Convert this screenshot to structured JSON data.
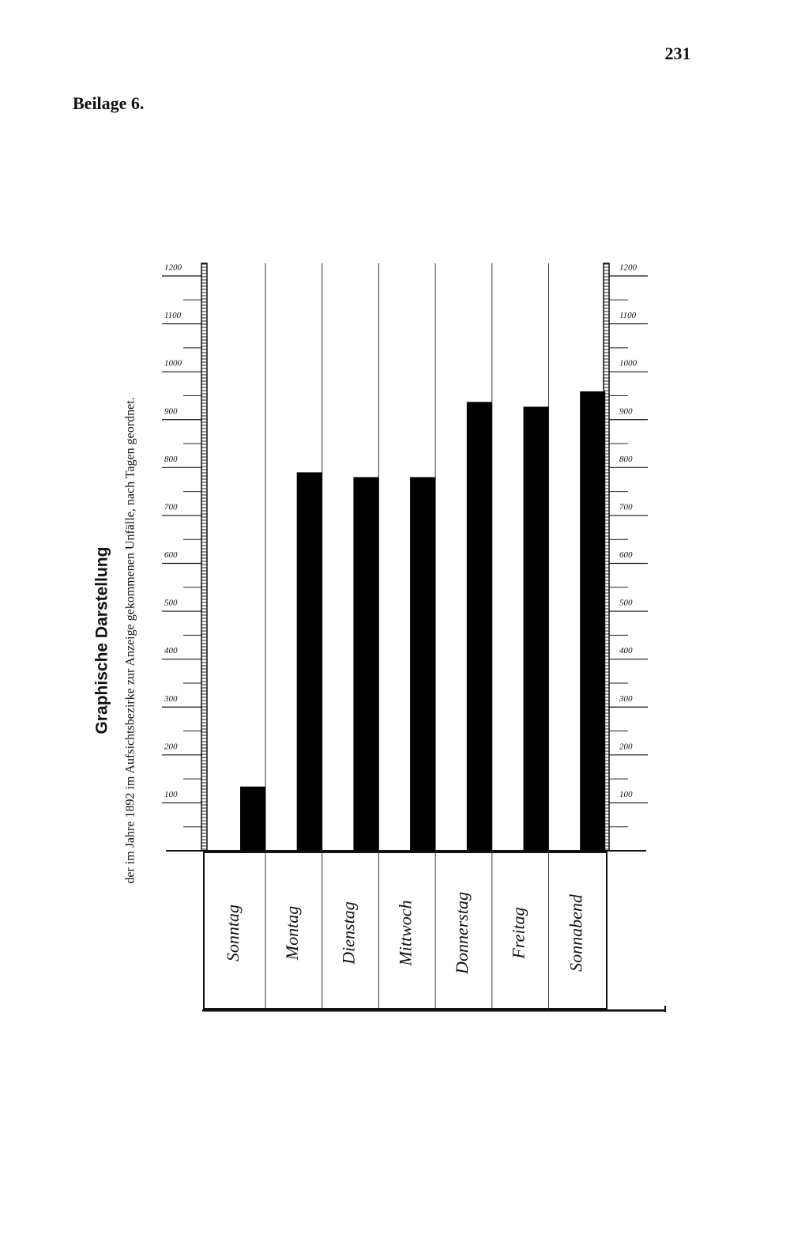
{
  "page_number": "231",
  "header": "Beilage 6.",
  "chart_data": {
    "type": "bar",
    "title": "Graphische Darstellung",
    "subtitle": "der im Jahre 1892 im Aufsichtsbezirke zur Anzeige gekommenen Unfälle, nach Tagen geordnet.",
    "categories": [
      "Sonntag",
      "Montag",
      "Dienstag",
      "Mittwoch",
      "Donnerstag",
      "Freitag",
      "Sonnabend"
    ],
    "values": [
      134,
      790,
      780,
      780,
      937,
      927,
      959
    ],
    "color": "#000000",
    "ylim": [
      0,
      1200
    ],
    "yticks": [
      100,
      200,
      300,
      400,
      500,
      600,
      700,
      800,
      900,
      1000,
      1100,
      1200
    ]
  }
}
